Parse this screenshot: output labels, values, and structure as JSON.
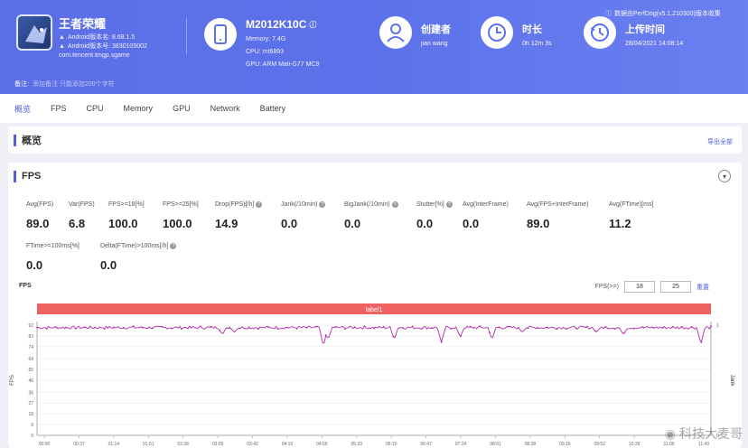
{
  "header": {
    "app": {
      "name": "王者荣耀",
      "android_version_label": "Android版本名: 8.68.1.5",
      "android_version_code": "Android版本号: 3830105002",
      "package": "com.tencent.tmgp.sgame"
    },
    "device": {
      "model": "M2012K10C",
      "memory": "Memory: 7.4G",
      "cpu": "CPU: mt6893",
      "gpu": "GPU: ARM Mali-G77 MC9"
    },
    "creator": {
      "title": "创建者",
      "value": "jian wang"
    },
    "duration": {
      "title": "时长",
      "value": "0h 12m 3s"
    },
    "upload": {
      "title": "上传时间",
      "value": "28/04/2021 14:08:14"
    },
    "report_link": "数据由PerfDog(v5.1.210300)版本收集",
    "remark_label": "备注:",
    "remark_value": "添加备注  只能添加200个字符"
  },
  "tabs": [
    "概览",
    "FPS",
    "CPU",
    "Memory",
    "GPU",
    "Network",
    "Battery"
  ],
  "overview": {
    "title": "概览",
    "export_label": "导出全部"
  },
  "fps_section": {
    "title": "FPS",
    "collapse_icon": "chevron-down-icon",
    "metrics_row1": [
      {
        "label": "Avg(FPS)",
        "value": "89.0",
        "help": false
      },
      {
        "label": "Var(FPS)",
        "value": "6.8",
        "help": false
      },
      {
        "label": "FPS>=18[%]",
        "value": "100.0",
        "help": false
      },
      {
        "label": "FPS>=25[%]",
        "value": "100.0",
        "help": false
      },
      {
        "label": "Drop(FPS)[/h]",
        "value": "14.9",
        "help": true
      },
      {
        "label": "Jank(/10min)",
        "value": "0.0",
        "help": true
      },
      {
        "label": "BigJank(/10min)",
        "value": "0.0",
        "help": true
      },
      {
        "label": "Stutter[%]",
        "value": "0.0",
        "help": true
      },
      {
        "label": "Avg(InterFrame)",
        "value": "0.0",
        "help": false
      },
      {
        "label": "Avg(FPS+InterFrame)",
        "value": "89.0",
        "help": false
      },
      {
        "label": "Avg(FTime)[ms]",
        "value": "11.2",
        "help": false
      }
    ],
    "metrics_row2": [
      {
        "label": "FTime>=100ms[%]",
        "value": "0.0",
        "help": false
      },
      {
        "label": "Delta(FTime)>100ms[/h]",
        "value": "0.0",
        "help": true
      }
    ],
    "chart_label": "FPS",
    "filter": {
      "label": "FPS(>=)",
      "min1": "18",
      "min2": "25",
      "reset": "重置"
    }
  },
  "chart_data": {
    "type": "line",
    "title": "",
    "banner": "label1",
    "ylabel": "FPS",
    "y2label": "Jank",
    "ylim": [
      0,
      92
    ],
    "y_ticks": [
      0,
      9,
      18,
      27,
      36,
      46,
      55,
      64,
      74,
      83,
      92
    ],
    "y2_ticks": [
      0,
      1
    ],
    "x_ticks": [
      "00:00",
      "00:37",
      "01:14",
      "01:51",
      "02:28",
      "03:05",
      "03:42",
      "04:19",
      "04:56",
      "05:33",
      "06:10",
      "06:47",
      "07:24",
      "08:01",
      "08:38",
      "09:15",
      "09:52",
      "10:29",
      "11:06",
      "11:43"
    ],
    "baseline": 90,
    "dips": [
      {
        "x": 0.275,
        "y": 84
      },
      {
        "x": 0.293,
        "y": 86
      },
      {
        "x": 0.425,
        "y": 74
      },
      {
        "x": 0.432,
        "y": 80
      },
      {
        "x": 0.53,
        "y": 80
      },
      {
        "x": 0.6,
        "y": 78
      },
      {
        "x": 0.628,
        "y": 82
      },
      {
        "x": 0.675,
        "y": 80
      },
      {
        "x": 0.72,
        "y": 86
      },
      {
        "x": 0.83,
        "y": 86
      },
      {
        "x": 0.87,
        "y": 84
      },
      {
        "x": 0.985,
        "y": 76
      }
    ],
    "series": [
      {
        "values_shape": "flat ~90 with periodic dips",
        "color": "#b22ca8"
      }
    ],
    "grid": true,
    "banner_color": "#f06262"
  },
  "watermark": "科技大麦哥",
  "colors": {
    "accent": "#4a5fe0",
    "header": "#5d72ea",
    "line": "#b22ca8",
    "banner": "#f06262"
  }
}
